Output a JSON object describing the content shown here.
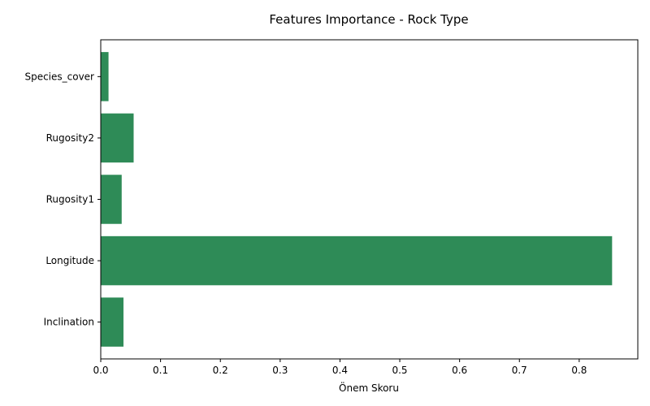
{
  "chart_data": {
    "type": "bar",
    "orientation": "horizontal",
    "title": "Features Importance - Rock Type",
    "xlabel": "Önem Skoru",
    "ylabel": "",
    "categories": [
      "Inclination",
      "Longitude",
      "Rugosity1",
      "Rugosity2",
      "Species_cover"
    ],
    "values": [
      0.038,
      0.855,
      0.035,
      0.055,
      0.013
    ],
    "xlim": [
      0,
      0.898
    ],
    "xticks": [
      "0.0",
      "0.1",
      "0.2",
      "0.3",
      "0.4",
      "0.5",
      "0.6",
      "0.7",
      "0.8"
    ],
    "grid": false,
    "bar_color": "#2e8b57"
  }
}
